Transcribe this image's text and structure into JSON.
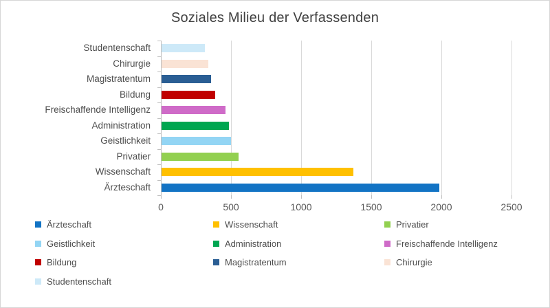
{
  "chart_data": {
    "type": "bar",
    "orientation": "horizontal",
    "title": "Soziales Milieu der Verfassenden",
    "categories": [
      "Studentenschaft",
      "Chirurgie",
      "Magistratentum",
      "Bildung",
      "Freischaffende Intelligenz",
      "Administration",
      "Geistlichkeit",
      "Privatier",
      "Wissenschaft",
      "Ärzteschaft"
    ],
    "values": [
      310,
      335,
      355,
      380,
      455,
      480,
      495,
      550,
      1370,
      1980
    ],
    "colors": [
      "#CDE9F8",
      "#FAE3D5",
      "#2A5E94",
      "#C00000",
      "#CF6BC8",
      "#00A651",
      "#93D5F4",
      "#92D050",
      "#FFC000",
      "#1273C4"
    ],
    "xlabel": "",
    "ylabel": "",
    "xlim": [
      0,
      2500
    ],
    "xticks": [
      0,
      500,
      1000,
      1500,
      2000,
      2500
    ],
    "grid": "vertical-gridlines-on",
    "legend_position": "bottom",
    "legend_order": [
      "Ärzteschaft",
      "Wissenschaft",
      "Privatier",
      "Geistlichkeit",
      "Administration",
      "Freischaffende Intelligenz",
      "Bildung",
      "Magistratentum",
      "Chirurgie",
      "Studentenschaft"
    ],
    "colors_meta": {
      "gridline": "#D9D9D9",
      "axis_line": "#BFBFBF",
      "title_text": "#404040",
      "tick_text": "#595959",
      "label_text": "#4D4D4D",
      "frame_border": "#D6D6D6",
      "background": "#FFFFFF"
    }
  }
}
